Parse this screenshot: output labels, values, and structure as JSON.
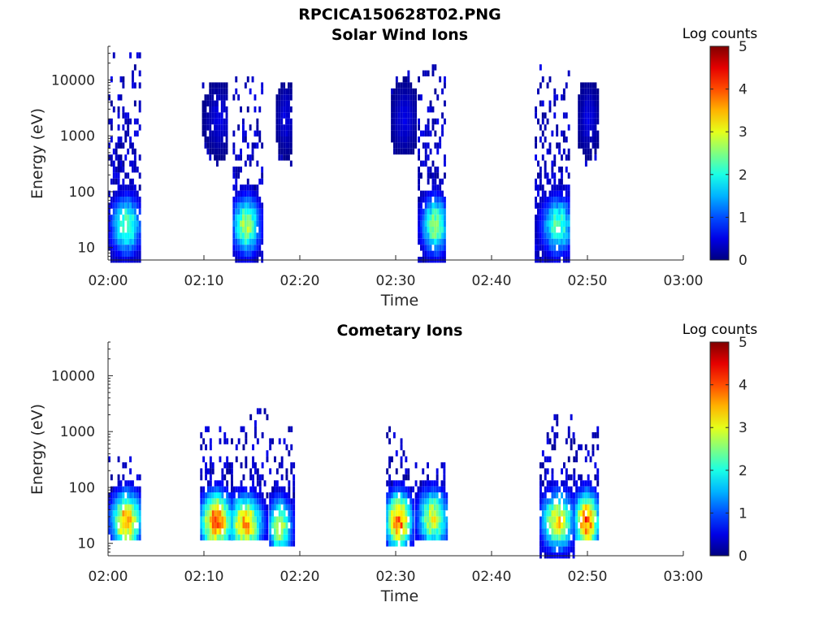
{
  "figure_title": "RPCICA150628T02.PNG",
  "chart_data": [
    {
      "type": "heatmap",
      "title": "Solar Wind Ions",
      "xlabel": "Time",
      "ylabel": "Energy (eV)",
      "x_ticks": [
        "02:00",
        "02:10",
        "02:20",
        "02:30",
        "02:40",
        "02:50",
        "03:00"
      ],
      "xlim_minutes": [
        0,
        60
      ],
      "y_ticks": [
        "10",
        "100",
        "1000",
        "10000"
      ],
      "y_scale": "log",
      "ylim": [
        6,
        40000
      ],
      "colorbar": {
        "title": "Log counts",
        "ticks": [
          "0",
          "1",
          "2",
          "3",
          "4",
          "5"
        ],
        "range": [
          0,
          5
        ],
        "colormap": "jet"
      },
      "bursts": [
        {
          "t_start": 0.0,
          "t_end": 3.3,
          "peak_minute": 1.8,
          "e_low": 6,
          "e_high": 30000,
          "peak_energy": 25,
          "max_log_counts": 2.4
        },
        {
          "t_start": 9.8,
          "t_end": 12.5,
          "peak_minute": 11.5,
          "e_low": 300,
          "e_high": 10000,
          "peak_energy": 2000,
          "max_log_counts": 0.5
        },
        {
          "t_start": 13.0,
          "t_end": 16.0,
          "peak_minute": 14.3,
          "e_low": 6,
          "e_high": 12000,
          "peak_energy": 25,
          "max_log_counts": 2.7
        },
        {
          "t_start": 17.5,
          "t_end": 19.2,
          "peak_minute": 18.4,
          "e_low": 300,
          "e_high": 9000,
          "peak_energy": 2000,
          "max_log_counts": 0.5
        },
        {
          "t_start": 29.5,
          "t_end": 32.0,
          "peak_minute": 30.8,
          "e_low": 500,
          "e_high": 15000,
          "peak_energy": 2000,
          "max_log_counts": 0.5
        },
        {
          "t_start": 32.3,
          "t_end": 35.2,
          "peak_minute": 34.0,
          "e_low": 6,
          "e_high": 20000,
          "peak_energy": 25,
          "max_log_counts": 2.6
        },
        {
          "t_start": 44.5,
          "t_end": 48.0,
          "peak_minute": 46.8,
          "e_low": 6,
          "e_high": 18000,
          "peak_energy": 25,
          "max_log_counts": 2.3
        },
        {
          "t_start": 49.0,
          "t_end": 51.0,
          "peak_minute": 50.0,
          "e_low": 300,
          "e_high": 9000,
          "peak_energy": 2000,
          "max_log_counts": 0.5
        }
      ]
    },
    {
      "type": "heatmap",
      "title": "Cometary Ions",
      "xlabel": "Time",
      "ylabel": "Energy (eV)",
      "x_ticks": [
        "02:00",
        "02:10",
        "02:20",
        "02:30",
        "02:40",
        "02:50",
        "03:00"
      ],
      "xlim_minutes": [
        0,
        60
      ],
      "y_ticks": [
        "10",
        "100",
        "1000",
        "10000"
      ],
      "y_scale": "log",
      "ylim": [
        6,
        40000
      ],
      "colorbar": {
        "title": "Log counts",
        "ticks": [
          "0",
          "1",
          "2",
          "3",
          "4",
          "5"
        ],
        "range": [
          0,
          5
        ],
        "colormap": "jet"
      },
      "bursts": [
        {
          "t_start": 0.0,
          "t_end": 3.3,
          "peak_minute": 1.8,
          "e_low": 12,
          "e_high": 400,
          "peak_energy": 25,
          "max_log_counts": 3.6
        },
        {
          "t_start": 9.6,
          "t_end": 13.0,
          "peak_minute": 11.2,
          "e_low": 12,
          "e_high": 1200,
          "peak_energy": 25,
          "max_log_counts": 4.0
        },
        {
          "t_start": 12.8,
          "t_end": 16.5,
          "peak_minute": 14.2,
          "e_low": 12,
          "e_high": 2500,
          "peak_energy": 22,
          "max_log_counts": 3.5
        },
        {
          "t_start": 16.8,
          "t_end": 19.5,
          "peak_minute": 17.8,
          "e_low": 8,
          "e_high": 1200,
          "peak_energy": 20,
          "max_log_counts": 2.8
        },
        {
          "t_start": 29.0,
          "t_end": 31.8,
          "peak_minute": 30.2,
          "e_low": 8,
          "e_high": 1400,
          "peak_energy": 25,
          "max_log_counts": 4.0
        },
        {
          "t_start": 32.0,
          "t_end": 35.3,
          "peak_minute": 33.8,
          "e_low": 12,
          "e_high": 400,
          "peak_energy": 28,
          "max_log_counts": 3.0
        },
        {
          "t_start": 45.0,
          "t_end": 48.5,
          "peak_minute": 46.8,
          "e_low": 6,
          "e_high": 2100,
          "peak_energy": 25,
          "max_log_counts": 3.2
        },
        {
          "t_start": 48.5,
          "t_end": 51.2,
          "peak_minute": 49.8,
          "e_low": 10,
          "e_high": 1200,
          "peak_energy": 25,
          "max_log_counts": 4.0
        }
      ]
    }
  ]
}
